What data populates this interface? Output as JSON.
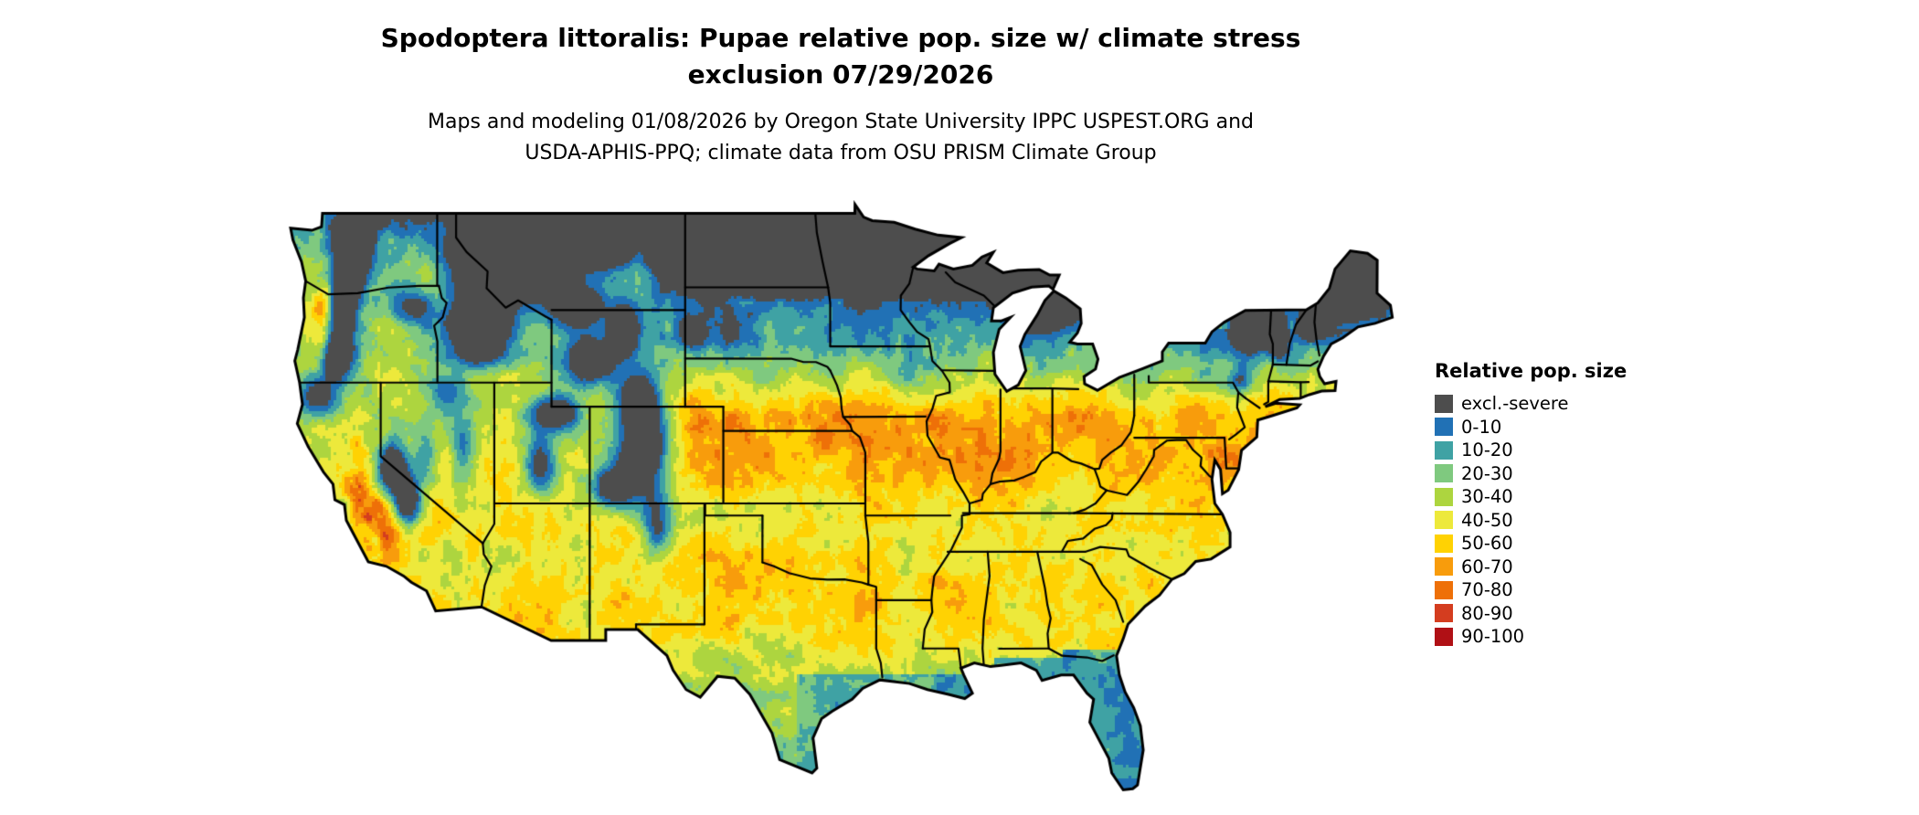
{
  "header": {
    "title_line1": "Spodoptera littoralis: Pupae relative pop. size w/ climate stress",
    "title_line2": "exclusion 07/29/2026",
    "subtitle_line1": "Maps and modeling 01/08/2026 by Oregon State University IPPC USPEST.ORG and",
    "subtitle_line2": "USDA-APHIS-PPQ; climate data from OSU PRISM Climate Group"
  },
  "legend": {
    "title": "Relative pop. size",
    "items": [
      {
        "label": "excl.-severe",
        "color": "#4D4D4D"
      },
      {
        "label": "0-10",
        "color": "#2171B5"
      },
      {
        "label": "10-20",
        "color": "#3FA2A4"
      },
      {
        "label": "20-30",
        "color": "#7FC97F"
      },
      {
        "label": "30-40",
        "color": "#ADD53F"
      },
      {
        "label": "40-50",
        "color": "#EDE93B"
      },
      {
        "label": "50-60",
        "color": "#FFD203"
      },
      {
        "label": "60-70",
        "color": "#F89C0C"
      },
      {
        "label": "70-80",
        "color": "#EE7008"
      },
      {
        "label": "80-90",
        "color": "#D43D1F"
      },
      {
        "label": "90-100",
        "color": "#B01015"
      }
    ]
  },
  "map": {
    "outline_color": "#000000",
    "state_border_color": "#000000",
    "water_background": "#FFFFFF"
  }
}
